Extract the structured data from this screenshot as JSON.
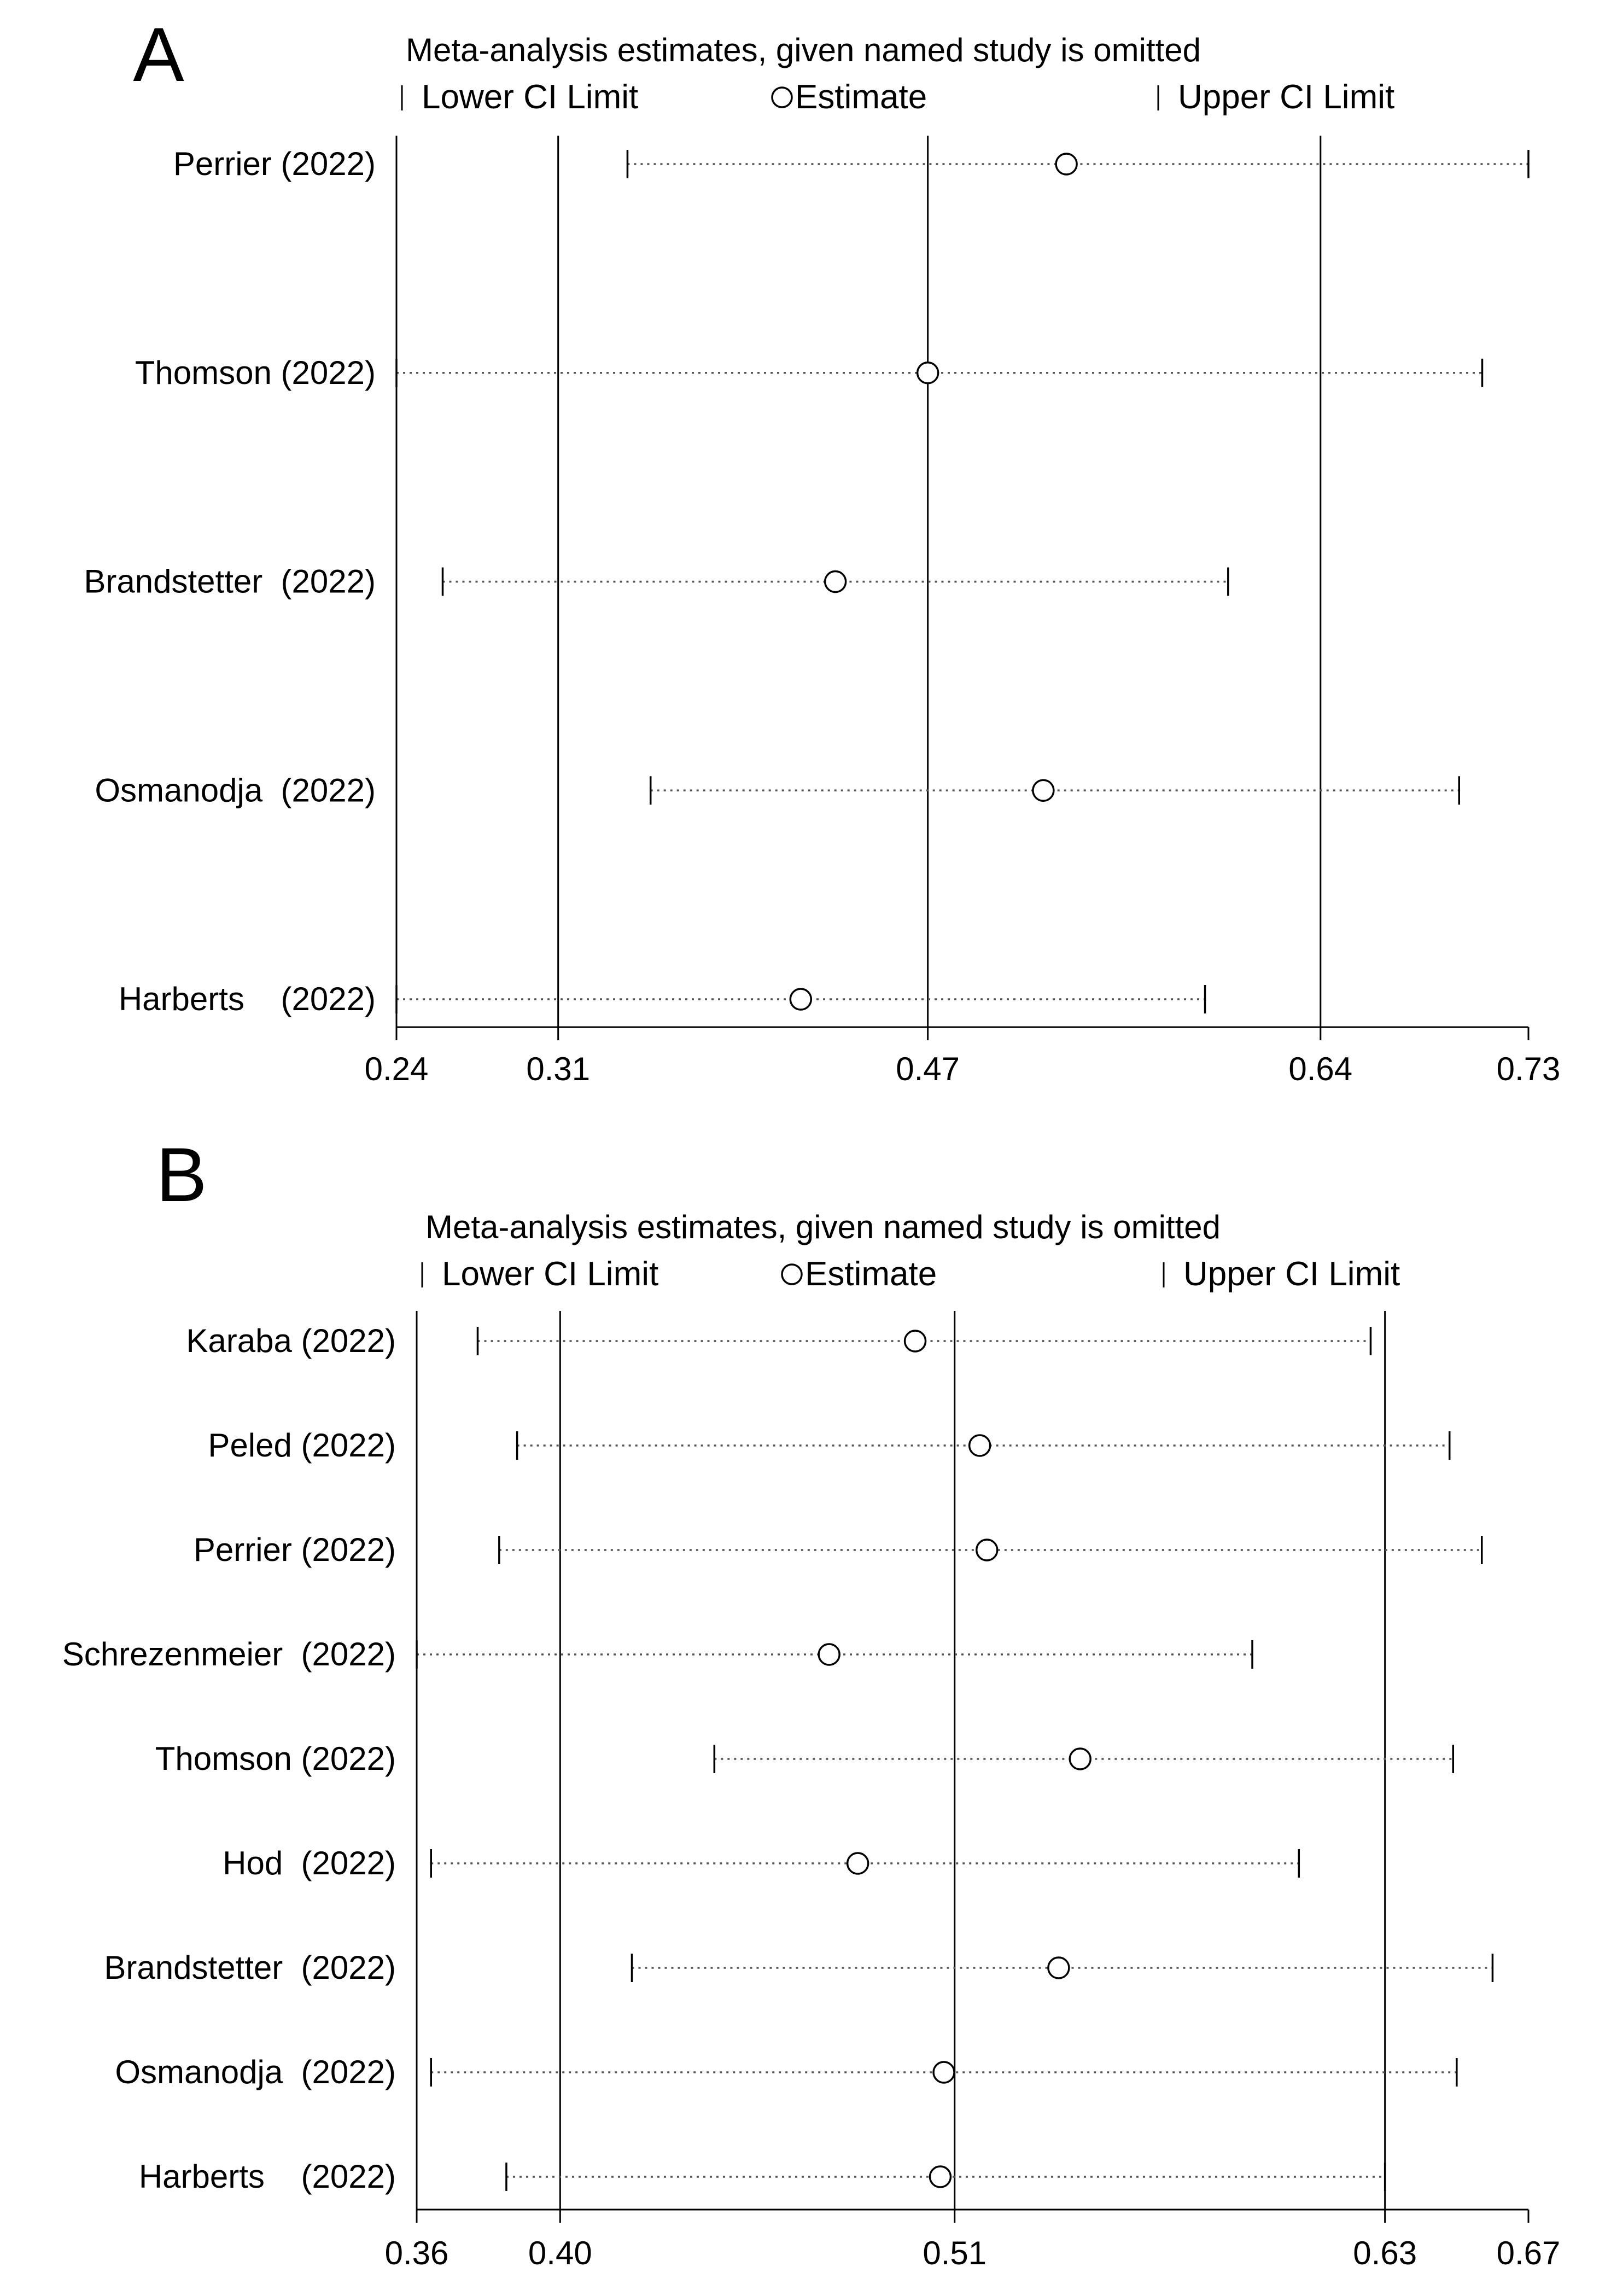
{
  "chart_data": [
    {
      "panel": "A",
      "type": "scatter",
      "subtype": "sensitivity-analysis-forest",
      "title": "Meta-analysis estimates, given named study is omitted",
      "legend": {
        "lower": "Lower CI Limit",
        "estimate": "Estimate",
        "upper": "Upper CI Limit"
      },
      "xlim": [
        0.24,
        0.73
      ],
      "ticks": [
        "0.24",
        "0.31",
        "0.47",
        "0.64",
        "0.73"
      ],
      "reference_lines": [
        0.31,
        0.47,
        0.64
      ],
      "studies": [
        {
          "label": "Perrier (2022)",
          "lower": 0.34,
          "estimate": 0.53,
          "upper": 0.73
        },
        {
          "label": "Thomson (2022)",
          "lower": 0.24,
          "estimate": 0.47,
          "upper": 0.71
        },
        {
          "label": "Brandstetter  (2022)",
          "lower": 0.26,
          "estimate": 0.43,
          "upper": 0.6
        },
        {
          "label": "Osmanodja  (2022)",
          "lower": 0.35,
          "estimate": 0.52,
          "upper": 0.7
        },
        {
          "label": "Harberts    (2022)",
          "lower": 0.24,
          "estimate": 0.415,
          "upper": 0.59
        }
      ]
    },
    {
      "panel": "B",
      "type": "scatter",
      "subtype": "sensitivity-analysis-forest",
      "title": "Meta-analysis estimates, given named study is omitted",
      "legend": {
        "lower": "Lower CI Limit",
        "estimate": "Estimate",
        "upper": "Upper CI Limit"
      },
      "xlim": [
        0.36,
        0.67
      ],
      "ticks": [
        "0.36",
        "0.40",
        "0.51",
        "0.63",
        "0.67"
      ],
      "reference_lines": [
        0.4,
        0.51,
        0.63
      ],
      "studies": [
        {
          "label": "Karaba (2022)",
          "lower": 0.377,
          "estimate": 0.499,
          "upper": 0.626
        },
        {
          "label": "Peled (2022)",
          "lower": 0.388,
          "estimate": 0.517,
          "upper": 0.648
        },
        {
          "label": "Perrier (2022)",
          "lower": 0.383,
          "estimate": 0.519,
          "upper": 0.657
        },
        {
          "label": "Schrezenmeier  (2022)",
          "lower": 0.36,
          "estimate": 0.475,
          "upper": 0.593
        },
        {
          "label": "Thomson (2022)",
          "lower": 0.443,
          "estimate": 0.545,
          "upper": 0.649
        },
        {
          "label": "Hod  (2022)",
          "lower": 0.364,
          "estimate": 0.483,
          "upper": 0.606
        },
        {
          "label": "Brandstetter  (2022)",
          "lower": 0.42,
          "estimate": 0.539,
          "upper": 0.66
        },
        {
          "label": "Osmanodja  (2022)",
          "lower": 0.364,
          "estimate": 0.507,
          "upper": 0.65
        },
        {
          "label": "Harberts    (2022)",
          "lower": 0.385,
          "estimate": 0.506,
          "upper": 0.63
        }
      ]
    }
  ],
  "panels": [
    {
      "letter": "A"
    },
    {
      "letter": "B"
    }
  ]
}
